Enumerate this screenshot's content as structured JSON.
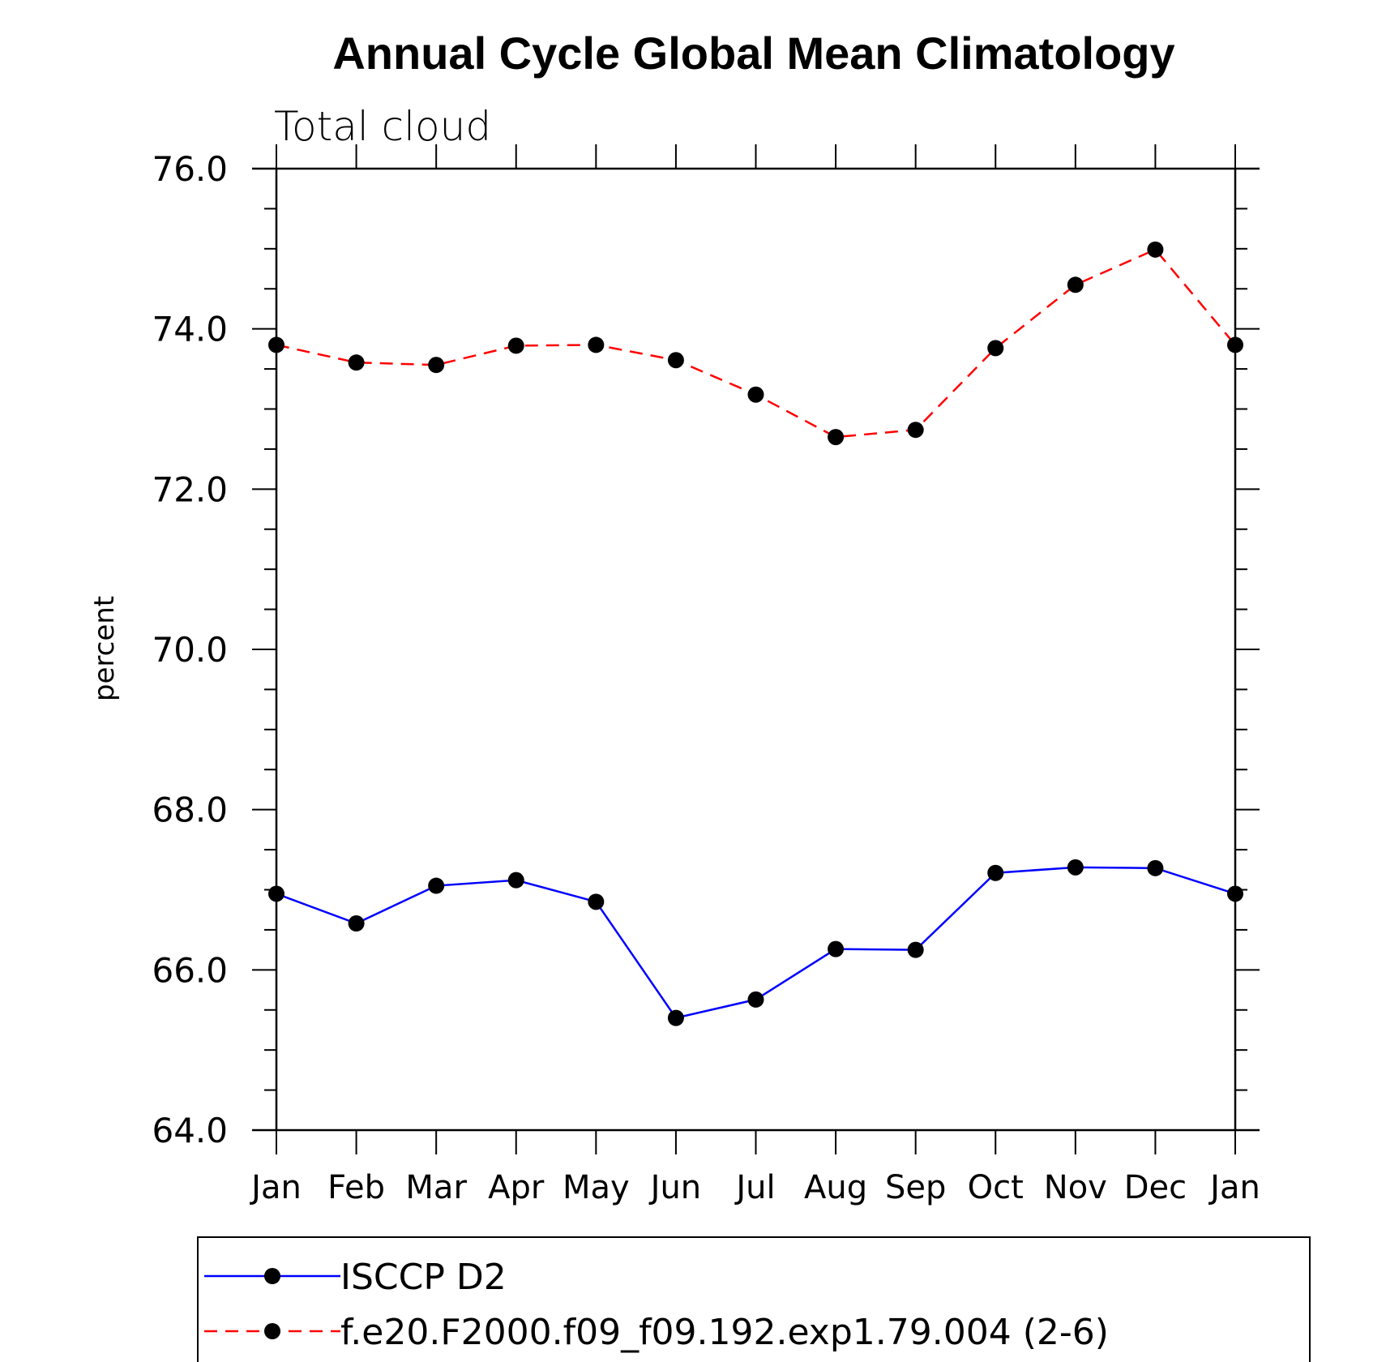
{
  "title": "Annual Cycle Global Mean Climatology",
  "chart_data": {
    "type": "line",
    "title": "Annual Cycle Global Mean Climatology",
    "subtitle": "Total cloud",
    "xlabel": "",
    "ylabel": "percent",
    "ylim": [
      64.0,
      76.0
    ],
    "yticks": [
      "64.0",
      "66.0",
      "68.0",
      "70.0",
      "72.0",
      "74.0",
      "76.0"
    ],
    "ytick_values": [
      64,
      66,
      68,
      70,
      72,
      74,
      76
    ],
    "categories": [
      "Jan",
      "Feb",
      "Mar",
      "Apr",
      "May",
      "Jun",
      "Jul",
      "Aug",
      "Sep",
      "Oct",
      "Nov",
      "Dec",
      "Jan"
    ],
    "grid": false,
    "legend_position": "bottom",
    "series": [
      {
        "name": "ISCCP D2",
        "color": "#0000ff",
        "dash": "solid",
        "values": [
          66.95,
          66.58,
          67.05,
          67.12,
          66.85,
          65.4,
          65.63,
          66.26,
          66.25,
          67.21,
          67.28,
          67.27,
          66.95
        ]
      },
      {
        "name": "f.e20.F2000.f09_f09.192.exp1.79.004 (2-6)",
        "color": "#ff0000",
        "dash": "dashed",
        "values": [
          73.8,
          73.58,
          73.55,
          73.79,
          73.8,
          73.61,
          73.18,
          72.65,
          72.74,
          73.76,
          74.55,
          74.99,
          73.8
        ]
      }
    ],
    "marker_color": "#000000"
  }
}
